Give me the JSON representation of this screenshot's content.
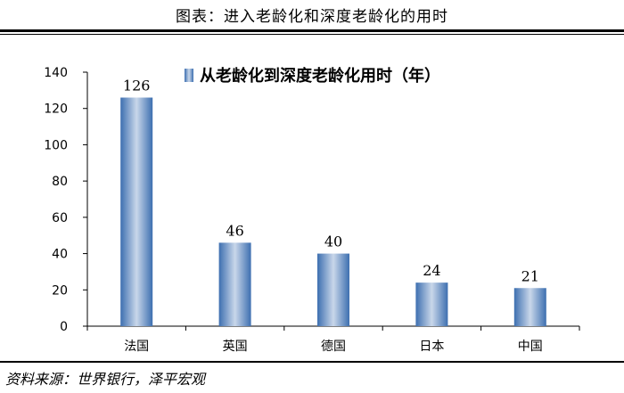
{
  "header": {
    "title": "图表：进入老龄化和深度老龄化的用时"
  },
  "footer": {
    "source": "资料来源：世界银行，泽平宏观"
  },
  "colors": {
    "bar_dark": "#3d6fb0",
    "bar_light": "#c9d7ea",
    "axis": "#000000"
  },
  "chart_data": {
    "type": "bar",
    "categories": [
      "法国",
      "英国",
      "德国",
      "日本",
      "中国"
    ],
    "series": [
      {
        "name": "从老龄化到深度老龄化用时（年）",
        "values": [
          126,
          46,
          40,
          24,
          21
        ]
      }
    ],
    "ylim": [
      0,
      140
    ],
    "yticks": [
      0,
      20,
      40,
      60,
      80,
      100,
      120,
      140
    ],
    "legend_position": "top-right",
    "grid": false
  }
}
